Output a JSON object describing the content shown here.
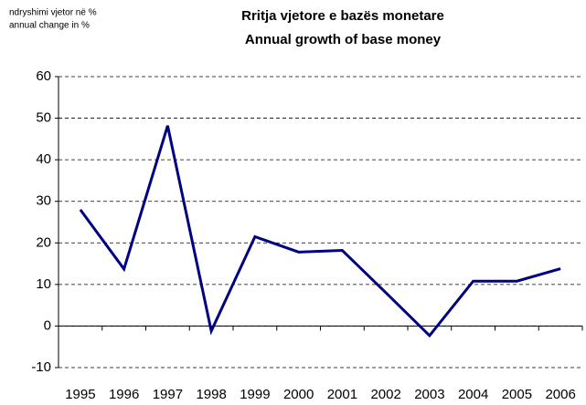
{
  "chart_data": {
    "type": "line",
    "title": "Rritja vjetore e bazës monetare",
    "subtitle": "Annual growth of base money",
    "y_axis_label": [
      "ndryshimi vjetor në %",
      "annual change in %"
    ],
    "categories": [
      "1995",
      "1996",
      "1997",
      "1998",
      "1999",
      "2000",
      "2001",
      "2002",
      "2003",
      "2004",
      "2005",
      "2006"
    ],
    "series": [
      {
        "name": "Annual growth of base money",
        "color": "#000080",
        "values": [
          28,
          13.7,
          48.2,
          -1.2,
          21.5,
          17.8,
          18.2,
          8,
          -2.3,
          10.8,
          10.8,
          13.8
        ]
      }
    ],
    "ylim": [
      -10,
      60
    ],
    "yticks": [
      -10,
      0,
      10,
      20,
      30,
      40,
      50,
      60
    ],
    "grid": true
  }
}
